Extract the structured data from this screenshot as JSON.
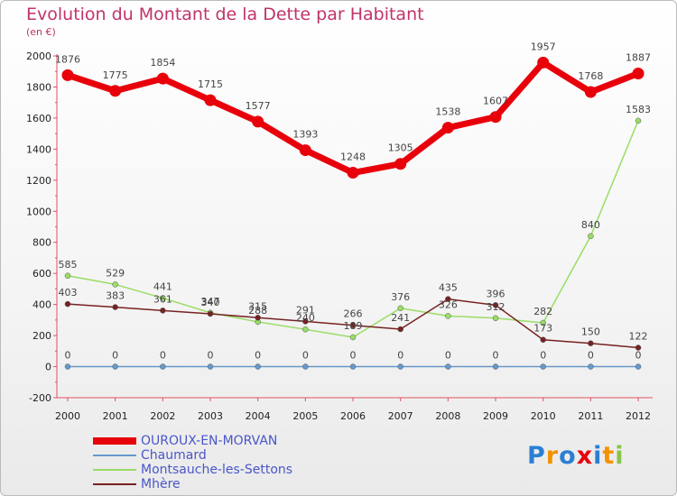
{
  "chart_data": {
    "type": "line",
    "title": "Evolution du Montant de la Dette par Habitant",
    "subtitle": "(en €)",
    "x": [
      "2000",
      "2001",
      "2002",
      "2003",
      "2004",
      "2005",
      "2006",
      "2007",
      "2008",
      "2009",
      "2010",
      "2011",
      "2012"
    ],
    "ylim": [
      -200,
      2000
    ],
    "yticks": [
      -200,
      0,
      200,
      400,
      600,
      800,
      1000,
      1200,
      1400,
      1600,
      1800,
      2000
    ],
    "grid": false,
    "legend_position": "bottom-left",
    "series": [
      {
        "name": "OUROUX-EN-MORVAN",
        "color": "#e8000b",
        "values": [
          1876,
          1775,
          1854,
          1715,
          1577,
          1393,
          1248,
          1305,
          1538,
          1607,
          1957,
          1768,
          1887
        ],
        "labels": [
          "1876",
          "1775",
          "1854",
          "1715",
          "1577",
          "1393",
          "1248",
          "1305",
          "1538",
          "1607",
          "1957",
          "1768",
          "1887"
        ]
      },
      {
        "name": "Chaumard",
        "color": "#6699cc",
        "values": [
          0,
          0,
          0,
          0,
          0,
          0,
          0,
          0,
          0,
          0,
          0,
          0,
          0
        ],
        "labels": [
          "0",
          "0",
          "0",
          "0",
          "0",
          "0",
          "0",
          "0",
          "0",
          "0",
          "0",
          "0",
          "0"
        ]
      },
      {
        "name": "Montsauche-les-Settons",
        "color": "#99dd66",
        "values": [
          585,
          529,
          441,
          347,
          288,
          240,
          189,
          376,
          326,
          312,
          282,
          840,
          1583
        ],
        "labels": [
          "585",
          "529",
          "441",
          "347",
          "288",
          "240",
          "189",
          "376",
          "326",
          "312",
          "282",
          "840",
          "1583"
        ]
      },
      {
        "name": "Mhère",
        "color": "#772222",
        "values": [
          403,
          383,
          361,
          340,
          315,
          291,
          266,
          241,
          435,
          396,
          173,
          150,
          122
        ],
        "labels": [
          "403",
          "383",
          "361",
          "340",
          "315",
          "291",
          "266",
          "241",
          "435",
          "396",
          "173",
          "150",
          "122"
        ]
      }
    ]
  },
  "logo": {
    "text": "Proxiti",
    "letters": [
      "P",
      "r",
      "o",
      "x",
      "i",
      "t",
      "i"
    ],
    "colors": [
      "#2a7fd4",
      "#f39200",
      "#2a7fd4",
      "#e8000b",
      "#2a7fd4",
      "#f39200",
      "#8bc34a"
    ]
  }
}
